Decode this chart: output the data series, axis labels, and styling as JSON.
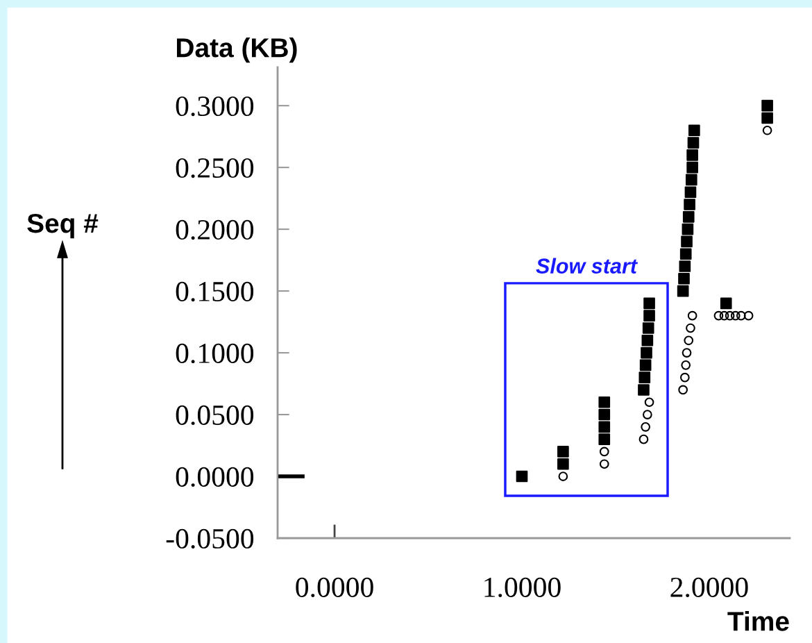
{
  "chart_data": {
    "type": "scatter",
    "ylabel": "Data (KB)",
    "xlabel": "Time",
    "annotations": [
      "Slow start",
      "Seq #"
    ],
    "series": [
      {
        "marker": "square",
        "color": "#000000",
        "x": [
          1.0,
          1.22,
          1.22,
          1.44,
          1.44,
          1.44,
          1.44,
          1.65,
          1.655,
          1.66,
          1.665,
          1.67,
          1.675,
          1.68,
          1.68,
          1.86,
          1.865,
          1.87,
          1.875,
          1.88,
          1.885,
          1.89,
          1.895,
          1.9,
          1.905,
          1.91,
          1.91,
          1.915,
          1.92,
          2.09,
          2.31,
          2.31
        ],
        "values": [
          0.0,
          0.01,
          0.02,
          0.03,
          0.04,
          0.05,
          0.06,
          0.07,
          0.08,
          0.09,
          0.1,
          0.11,
          0.12,
          0.13,
          0.14,
          0.15,
          0.16,
          0.17,
          0.18,
          0.19,
          0.2,
          0.21,
          0.22,
          0.23,
          0.24,
          0.25,
          0.26,
          0.27,
          0.28,
          0.14,
          0.29,
          0.3
        ]
      },
      {
        "marker": "circle",
        "color": "#000000",
        "x": [
          1.22,
          1.44,
          1.44,
          1.65,
          1.66,
          1.67,
          1.68,
          1.86,
          1.87,
          1.875,
          1.88,
          1.89,
          1.9,
          1.91,
          2.05,
          2.08,
          2.11,
          2.14,
          2.17,
          2.21,
          2.31
        ],
        "values": [
          0.0,
          0.01,
          0.02,
          0.03,
          0.04,
          0.05,
          0.06,
          0.07,
          0.08,
          0.09,
          0.1,
          0.11,
          0.12,
          0.13,
          0.13,
          0.13,
          0.13,
          0.13,
          0.13,
          0.13,
          0.28
        ]
      },
      {
        "type": "line",
        "color": "#000000",
        "x": [
          -0.3,
          -0.16
        ],
        "values": [
          0.0,
          0.0
        ]
      }
    ],
    "xlim": [
      -0.304,
      2.43
    ],
    "ylim": [
      -0.05,
      0.331
    ],
    "xticks": [
      {
        "value": 0,
        "label": "0.0000"
      },
      {
        "value": 1,
        "label": "1.0000"
      },
      {
        "value": 2,
        "label": "2.0000"
      }
    ],
    "yticks": [
      {
        "value": -0.05,
        "label": "-0.0500"
      },
      {
        "value": 0,
        "label": "0.0000"
      },
      {
        "value": 0.05,
        "label": "0.0500"
      },
      {
        "value": 0.1,
        "label": "0.1000"
      },
      {
        "value": 0.15,
        "label": "0.1500"
      },
      {
        "value": 0.2,
        "label": "0.2000"
      },
      {
        "value": 0.25,
        "label": "0.2500"
      },
      {
        "value": 0.3,
        "label": "0.3000"
      }
    ],
    "grid": false,
    "legend": false
  }
}
